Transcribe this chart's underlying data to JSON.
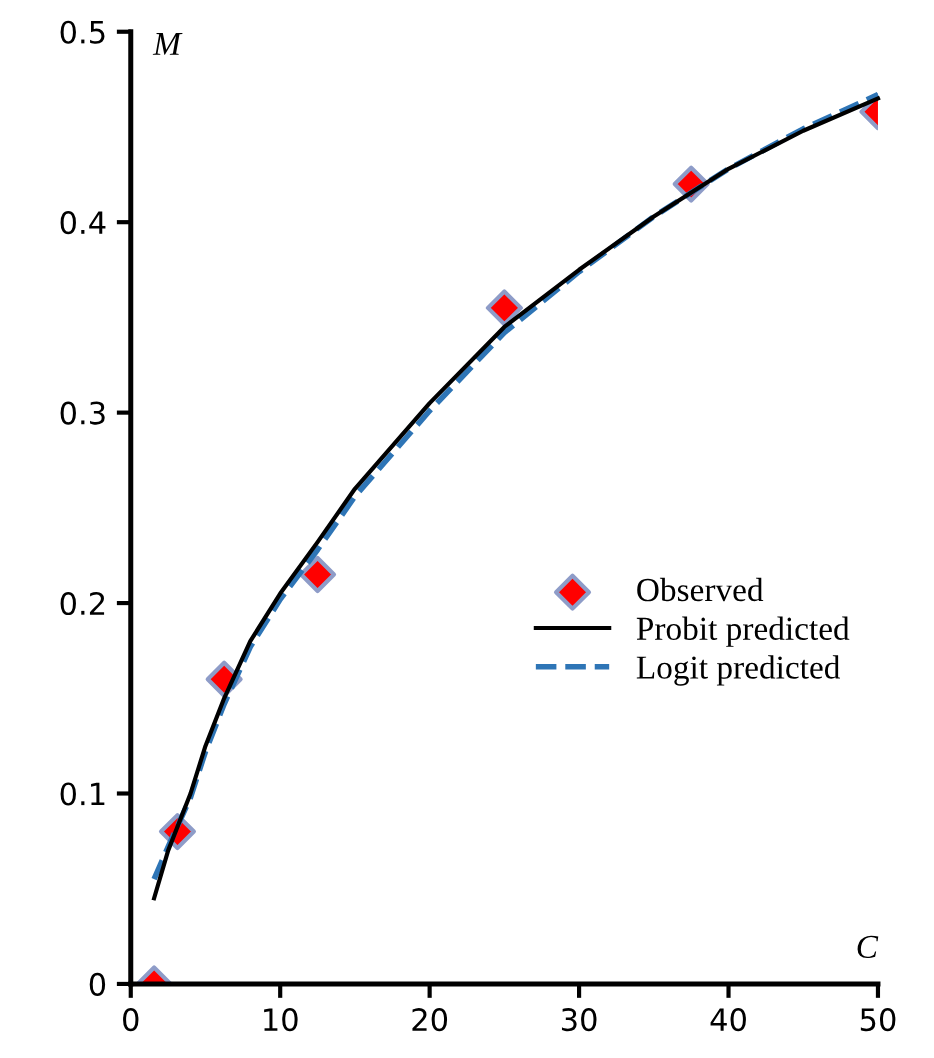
{
  "chart_data": {
    "type": "scatter",
    "xlabel": "C",
    "ylabel": "M",
    "xlim": [
      0,
      50
    ],
    "ylim": [
      0,
      0.5
    ],
    "xticks": [
      0,
      10,
      20,
      30,
      40,
      50
    ],
    "yticks": [
      0,
      0.1,
      0.2,
      0.3,
      0.4,
      0.5
    ],
    "grid": false,
    "legend": "right",
    "series": [
      {
        "name": "Observed",
        "marker": "diamond",
        "color": "#ff0000",
        "x": [
          1.5625,
          3.125,
          6.25,
          12.5,
          25,
          37.5,
          50
        ],
        "values": [
          0,
          0.08,
          0.16,
          0.215,
          0.355,
          0.42,
          0.458
        ]
      },
      {
        "name": "Probit predicted",
        "type": "line",
        "line_style": "solid",
        "color": "#000000",
        "x": [
          1.5625,
          2.5,
          4,
          5,
          6.25,
          8,
          10,
          12.5,
          15,
          20,
          25,
          30,
          35,
          40,
          45,
          50
        ],
        "values": [
          0.045,
          0.07,
          0.1,
          0.125,
          0.15,
          0.18,
          0.205,
          0.232,
          0.26,
          0.305,
          0.345,
          0.375,
          0.403,
          0.428,
          0.448,
          0.465
        ]
      },
      {
        "name": "Logit predicted",
        "type": "line",
        "line_style": "dashed",
        "color": "#2e75b6",
        "x": [
          1.5625,
          2.5,
          4,
          5,
          6.25,
          8,
          10,
          12.5,
          15,
          20,
          25,
          30,
          35,
          40,
          45,
          50
        ],
        "values": [
          0.055,
          0.072,
          0.098,
          0.122,
          0.147,
          0.177,
          0.202,
          0.228,
          0.256,
          0.301,
          0.342,
          0.374,
          0.403,
          0.428,
          0.449,
          0.467
        ]
      }
    ]
  }
}
